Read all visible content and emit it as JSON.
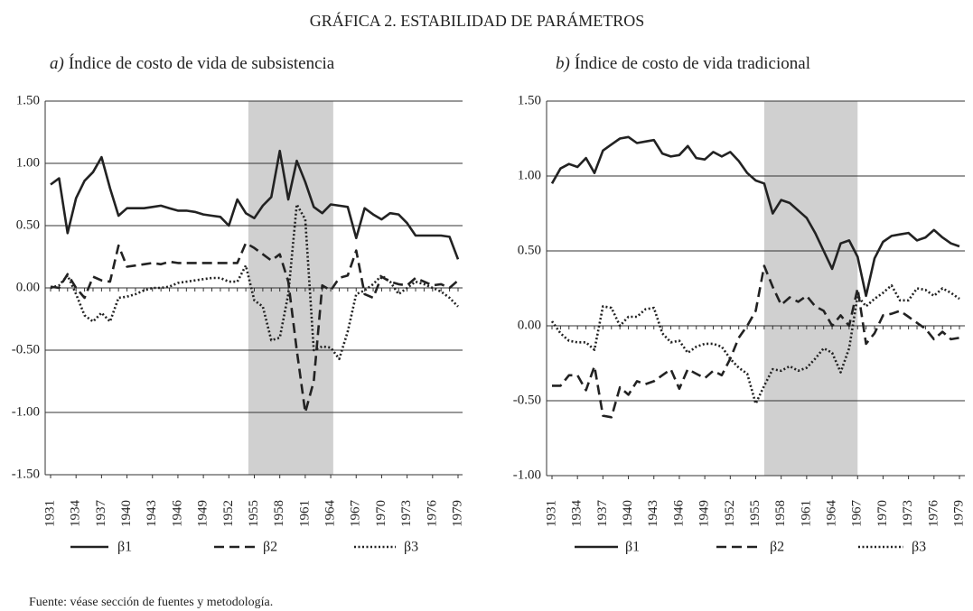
{
  "title": "GRÁFICA 2. ESTABILIDAD DE PARÁMETROS",
  "source": "Fuente: véase sección de fuentes y metodología.",
  "chart_data": [
    {
      "type": "line",
      "panel": "a)",
      "title": "Índice de costo de vida de subsistencia",
      "x": [
        1931,
        1932,
        1933,
        1934,
        1935,
        1936,
        1937,
        1938,
        1939,
        1940,
        1941,
        1942,
        1943,
        1944,
        1945,
        1946,
        1947,
        1948,
        1949,
        1950,
        1951,
        1952,
        1953,
        1954,
        1955,
        1956,
        1957,
        1958,
        1959,
        1960,
        1961,
        1962,
        1963,
        1964,
        1965,
        1966,
        1967,
        1968,
        1969,
        1970,
        1971,
        1972,
        1973,
        1974,
        1975,
        1976,
        1977,
        1978,
        1979
      ],
      "xlim": [
        1931,
        1979
      ],
      "xticks": [
        1931,
        1934,
        1937,
        1940,
        1943,
        1946,
        1949,
        1952,
        1955,
        1958,
        1961,
        1964,
        1967,
        1970,
        1973,
        1976,
        1979
      ],
      "ylim": [
        -1.5,
        1.5
      ],
      "yticks": [
        {
          "value": 1.5,
          "label": "1.50"
        },
        {
          "value": 1,
          "label": "1.00"
        },
        {
          "value": 0.5,
          "label": "0.50"
        },
        {
          "value": 0,
          "label": "0.00"
        },
        {
          "value": -0.5,
          "label": "-0.50"
        },
        {
          "value": -1,
          "label": "-1.00"
        },
        {
          "value": -1.5,
          "label": "-1.50"
        }
      ],
      "grid": true,
      "shaded_region": [
        1954.3,
        1964.3
      ],
      "shade_color": "#d0d0d0",
      "series": [
        {
          "name": "β1",
          "color": "#222222",
          "dash": "solid",
          "values": [
            0.83,
            0.88,
            0.44,
            0.72,
            0.86,
            0.93,
            1.05,
            0.8,
            0.58,
            0.64,
            0.64,
            0.64,
            0.65,
            0.66,
            0.64,
            0.62,
            0.62,
            0.61,
            0.59,
            0.58,
            0.57,
            0.5,
            0.71,
            0.6,
            0.56,
            0.66,
            0.73,
            1.1,
            0.71,
            1.02,
            0.85,
            0.65,
            0.6,
            0.67,
            0.66,
            0.65,
            0.4,
            0.64,
            0.59,
            0.55,
            0.6,
            0.59,
            0.52,
            0.42,
            0.42,
            0.42,
            0.42,
            0.41,
            0.23
          ]
        },
        {
          "name": "β2",
          "color": "#222222",
          "dash": "dashed",
          "values": [
            0.01,
            0.0,
            0.11,
            0.0,
            -0.08,
            0.09,
            0.06,
            0.05,
            0.34,
            0.17,
            0.18,
            0.19,
            0.2,
            0.19,
            0.21,
            0.2,
            0.2,
            0.2,
            0.2,
            0.2,
            0.2,
            0.2,
            0.2,
            0.36,
            0.32,
            0.27,
            0.22,
            0.27,
            0.05,
            -0.5,
            -1.0,
            -0.75,
            0.02,
            -0.02,
            0.08,
            0.1,
            0.3,
            -0.05,
            -0.08,
            0.09,
            0.05,
            0.03,
            0.02,
            0.08,
            0.05,
            0.02,
            0.03,
            0.0,
            0.06
          ]
        },
        {
          "name": "β3",
          "color": "#222222",
          "dash": "dotted",
          "values": [
            0.0,
            0.02,
            0.1,
            -0.05,
            -0.22,
            -0.27,
            -0.2,
            -0.27,
            -0.08,
            -0.07,
            -0.05,
            -0.02,
            0.0,
            0.0,
            0.01,
            0.04,
            0.05,
            0.06,
            0.07,
            0.08,
            0.08,
            0.05,
            0.05,
            0.18,
            -0.1,
            -0.15,
            -0.42,
            -0.4,
            -0.05,
            0.67,
            0.55,
            -0.5,
            -0.47,
            -0.48,
            -0.57,
            -0.35,
            -0.05,
            -0.02,
            0.03,
            0.1,
            0.05,
            -0.05,
            0.0,
            0.05,
            0.03,
            0.0,
            -0.03,
            -0.08,
            -0.15
          ]
        }
      ]
    },
    {
      "type": "line",
      "panel": "b)",
      "title": "Índice de costo de vida tradicional",
      "x": [
        1931,
        1932,
        1933,
        1934,
        1935,
        1936,
        1937,
        1938,
        1939,
        1940,
        1941,
        1942,
        1943,
        1944,
        1945,
        1946,
        1947,
        1948,
        1949,
        1950,
        1951,
        1952,
        1953,
        1954,
        1955,
        1956,
        1957,
        1958,
        1959,
        1960,
        1961,
        1962,
        1963,
        1964,
        1965,
        1966,
        1967,
        1968,
        1969,
        1970,
        1971,
        1972,
        1973,
        1974,
        1975,
        1976,
        1977,
        1978,
        1979
      ],
      "xlim": [
        1931,
        1979
      ],
      "xticks": [
        1931,
        1934,
        1937,
        1940,
        1943,
        1946,
        1949,
        1952,
        1955,
        1958,
        1961,
        1964,
        1967,
        1970,
        1973,
        1976,
        1979
      ],
      "ylim": [
        -1,
        1.5
      ],
      "yticks": [
        {
          "value": 1.5,
          "label": "1.50"
        },
        {
          "value": 1,
          "label": "1.00"
        },
        {
          "value": 0.5,
          "label": "0.50"
        },
        {
          "value": 0,
          "label": "0.00"
        },
        {
          "value": -0.5,
          "label": "-0.50"
        },
        {
          "value": -1,
          "label": "-1.00"
        }
      ],
      "grid": true,
      "shaded_region": [
        1956,
        1967
      ],
      "shade_color": "#d0d0d0",
      "series": [
        {
          "name": "β1",
          "color": "#222222",
          "dash": "solid",
          "values": [
            0.95,
            1.05,
            1.08,
            1.06,
            1.12,
            1.02,
            1.17,
            1.21,
            1.25,
            1.26,
            1.22,
            1.23,
            1.24,
            1.15,
            1.13,
            1.14,
            1.2,
            1.12,
            1.11,
            1.16,
            1.13,
            1.16,
            1.1,
            1.02,
            0.97,
            0.95,
            0.75,
            0.84,
            0.82,
            0.77,
            0.72,
            0.62,
            0.5,
            0.38,
            0.55,
            0.57,
            0.46,
            0.2,
            0.45,
            0.56,
            0.6,
            0.61,
            0.62,
            0.57,
            0.59,
            0.64,
            0.59,
            0.55,
            0.53
          ]
        },
        {
          "name": "β2",
          "color": "#222222",
          "dash": "dashed",
          "values": [
            -0.4,
            -0.4,
            -0.33,
            -0.33,
            -0.43,
            -0.27,
            -0.6,
            -0.61,
            -0.41,
            -0.46,
            -0.37,
            -0.39,
            -0.37,
            -0.33,
            -0.29,
            -0.42,
            -0.29,
            -0.32,
            -0.35,
            -0.3,
            -0.33,
            -0.22,
            -0.08,
            0.0,
            0.1,
            0.4,
            0.26,
            0.14,
            0.19,
            0.16,
            0.2,
            0.13,
            0.1,
            0.0,
            0.07,
            0.0,
            0.25,
            -0.12,
            -0.05,
            0.07,
            0.08,
            0.1,
            0.06,
            0.02,
            -0.02,
            -0.09,
            -0.04,
            -0.09,
            -0.08
          ]
        },
        {
          "name": "β3",
          "color": "#222222",
          "dash": "dotted",
          "values": [
            0.03,
            -0.05,
            -0.1,
            -0.11,
            -0.11,
            -0.16,
            0.13,
            0.12,
            0.0,
            0.06,
            0.06,
            0.11,
            0.12,
            -0.05,
            -0.11,
            -0.1,
            -0.18,
            -0.14,
            -0.12,
            -0.12,
            -0.14,
            -0.22,
            -0.28,
            -0.32,
            -0.52,
            -0.4,
            -0.29,
            -0.3,
            -0.27,
            -0.3,
            -0.28,
            -0.22,
            -0.15,
            -0.18,
            -0.31,
            -0.15,
            0.2,
            0.13,
            0.18,
            0.22,
            0.27,
            0.17,
            0.17,
            0.25,
            0.24,
            0.2,
            0.25,
            0.22,
            0.18
          ]
        }
      ]
    }
  ]
}
